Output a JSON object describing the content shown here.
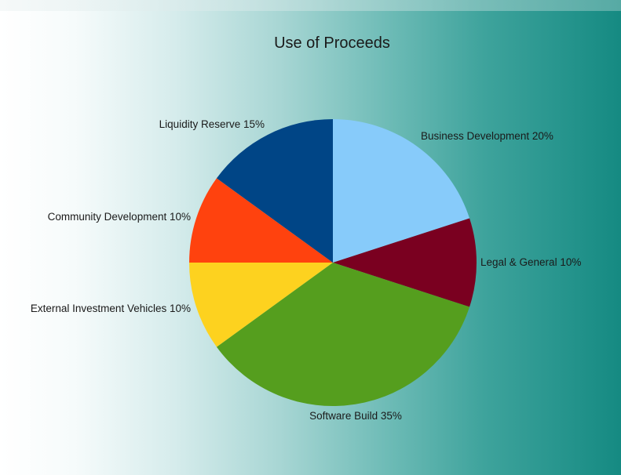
{
  "chart_data": {
    "type": "pie",
    "title": "Use of Proceeds",
    "slices": [
      {
        "label": "Business Development",
        "value": 20,
        "display": "Business Development 20%",
        "color": "#87CBFA"
      },
      {
        "label": "Legal & General",
        "value": 10,
        "display": "Legal & General 10%",
        "color": "#7A0020"
      },
      {
        "label": "Software Build",
        "value": 35,
        "display": "Software Build 35%",
        "color": "#559E1E"
      },
      {
        "label": "External Investment Vehicles",
        "value": 10,
        "display": "External Investment Vehicles 10%",
        "color": "#FDD21F"
      },
      {
        "label": "Community Development",
        "value": 10,
        "display": "Community Development 10%",
        "color": "#FF420E"
      },
      {
        "label": "Liquidity Reserve",
        "value": 15,
        "display": "Liquidity Reserve 15%",
        "color": "#004586"
      }
    ]
  }
}
